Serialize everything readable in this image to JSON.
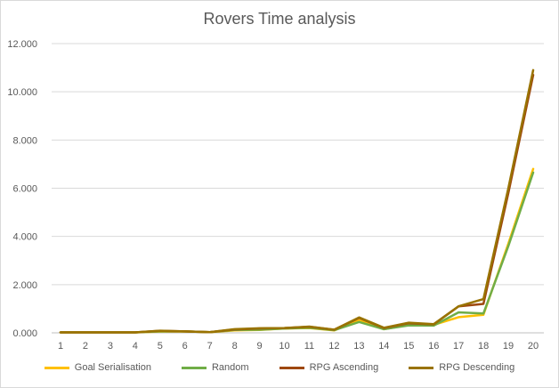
{
  "chart_data": {
    "type": "line",
    "title": "Rovers Time analysis",
    "xlabel": "",
    "ylabel": "",
    "x": [
      1,
      2,
      3,
      4,
      5,
      6,
      7,
      8,
      9,
      10,
      11,
      12,
      13,
      14,
      15,
      16,
      17,
      18,
      19,
      20
    ],
    "ylim": [
      0,
      12000
    ],
    "yticks": [
      0,
      2000,
      4000,
      6000,
      8000,
      10000,
      12000
    ],
    "ytick_labels": [
      "0.000",
      "2.000",
      "4.000",
      "6.000",
      "8.000",
      "10.000",
      "12.000"
    ],
    "grid": true,
    "legend_position": "bottom",
    "series": [
      {
        "name": "Goal Serialisation",
        "color": "#ffc000",
        "values": [
          20,
          20,
          20,
          20,
          50,
          60,
          30,
          100,
          120,
          180,
          200,
          100,
          520,
          150,
          330,
          330,
          650,
          750,
          3700,
          6800
        ]
      },
      {
        "name": "Random",
        "color": "#70ad47",
        "values": [
          20,
          20,
          20,
          20,
          60,
          60,
          30,
          120,
          130,
          180,
          210,
          110,
          450,
          150,
          310,
          300,
          850,
          800,
          3600,
          6650
        ]
      },
      {
        "name": "RPG Ascending",
        "color": "#9e480e",
        "values": [
          20,
          20,
          20,
          20,
          80,
          60,
          30,
          140,
          180,
          200,
          250,
          130,
          620,
          200,
          400,
          350,
          1100,
          1200,
          5800,
          10700
        ]
      },
      {
        "name": "RPG Descending",
        "color": "#997300",
        "values": [
          20,
          20,
          20,
          20,
          90,
          60,
          30,
          150,
          190,
          200,
          260,
          130,
          640,
          210,
          420,
          360,
          1100,
          1400,
          6000,
          10900
        ]
      }
    ]
  }
}
